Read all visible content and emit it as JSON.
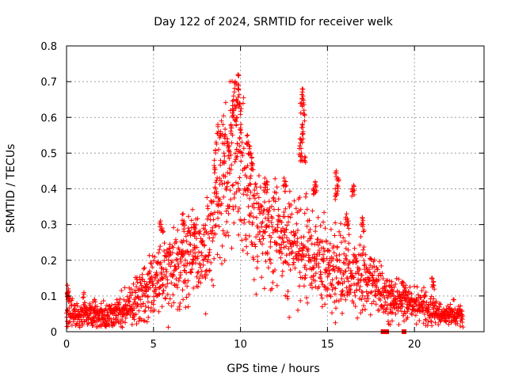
{
  "chart_data": {
    "type": "scatter",
    "title": "Day 122 of 2024, SRMTID for receiver welk",
    "xlabel": "GPS time / hours",
    "ylabel": "SRMTID / TECUs",
    "xlim": [
      0,
      24
    ],
    "ylim": [
      0,
      0.8
    ],
    "xticks": [
      0,
      5,
      10,
      15,
      20
    ],
    "yticks": [
      0,
      0.1,
      0.2,
      0.3,
      0.4,
      0.5,
      0.6,
      0.7,
      0.8
    ],
    "xtick_labels": [
      "0",
      "5",
      "10",
      "15",
      "20"
    ],
    "ytick_labels": [
      "0",
      "0.1",
      "0.2",
      "0.3",
      "0.4",
      "0.5",
      "0.6",
      "0.7",
      "0.8"
    ],
    "grid": true,
    "marker": "plus",
    "color": "#ff0000",
    "series": [
      {
        "name": "SRMTID",
        "profile": [
          [
            0.0,
            0.05,
            0.03
          ],
          [
            1.0,
            0.05,
            0.025
          ],
          [
            2.0,
            0.04,
            0.025
          ],
          [
            3.0,
            0.05,
            0.03
          ],
          [
            3.5,
            0.06,
            0.03
          ],
          [
            4.0,
            0.09,
            0.05
          ],
          [
            4.5,
            0.11,
            0.05
          ],
          [
            5.0,
            0.14,
            0.06
          ],
          [
            5.5,
            0.16,
            0.07
          ],
          [
            6.0,
            0.17,
            0.07
          ],
          [
            6.5,
            0.19,
            0.07
          ],
          [
            7.0,
            0.21,
            0.07
          ],
          [
            7.5,
            0.22,
            0.07
          ],
          [
            8.0,
            0.24,
            0.08
          ],
          [
            8.5,
            0.32,
            0.1
          ],
          [
            9.0,
            0.4,
            0.12
          ],
          [
            9.5,
            0.48,
            0.15
          ],
          [
            10.0,
            0.46,
            0.15
          ],
          [
            10.5,
            0.36,
            0.12
          ],
          [
            11.0,
            0.3,
            0.1
          ],
          [
            11.5,
            0.28,
            0.09
          ],
          [
            12.0,
            0.26,
            0.09
          ],
          [
            12.5,
            0.24,
            0.08
          ],
          [
            13.0,
            0.25,
            0.1
          ],
          [
            13.5,
            0.24,
            0.1
          ],
          [
            14.0,
            0.22,
            0.08
          ],
          [
            14.5,
            0.2,
            0.08
          ],
          [
            15.0,
            0.19,
            0.07
          ],
          [
            15.5,
            0.18,
            0.08
          ],
          [
            16.0,
            0.17,
            0.07
          ],
          [
            16.5,
            0.16,
            0.06
          ],
          [
            17.0,
            0.15,
            0.06
          ],
          [
            17.5,
            0.15,
            0.06
          ],
          [
            18.0,
            0.12,
            0.05
          ],
          [
            18.5,
            0.09,
            0.04
          ],
          [
            19.0,
            0.09,
            0.03
          ],
          [
            19.5,
            0.08,
            0.03
          ],
          [
            20.0,
            0.08,
            0.03
          ],
          [
            20.5,
            0.07,
            0.03
          ],
          [
            21.0,
            0.06,
            0.025
          ],
          [
            21.5,
            0.05,
            0.02
          ],
          [
            22.0,
            0.05,
            0.02
          ],
          [
            22.8,
            0.045,
            0.02
          ]
        ],
        "peaks": [
          [
            9.85,
            0.72
          ],
          [
            9.7,
            0.7
          ],
          [
            9.9,
            0.68
          ],
          [
            9.6,
            0.66
          ],
          [
            9.75,
            0.65
          ],
          [
            9.95,
            0.64
          ],
          [
            9.55,
            0.62
          ],
          [
            9.8,
            0.6
          ],
          [
            9.45,
            0.58
          ],
          [
            10.0,
            0.57
          ],
          [
            8.7,
            0.58
          ],
          [
            8.85,
            0.56
          ],
          [
            9.1,
            0.55
          ],
          [
            9.25,
            0.54
          ],
          [
            10.4,
            0.55
          ],
          [
            10.5,
            0.52
          ],
          [
            8.6,
            0.53
          ],
          [
            9.35,
            0.52
          ],
          [
            10.6,
            0.5
          ],
          [
            9.05,
            0.5
          ],
          [
            8.5,
            0.48
          ],
          [
            10.7,
            0.47
          ],
          [
            13.55,
            0.68
          ],
          [
            13.6,
            0.66
          ],
          [
            13.5,
            0.64
          ],
          [
            13.65,
            0.62
          ],
          [
            13.55,
            0.58
          ],
          [
            13.6,
            0.56
          ],
          [
            13.45,
            0.54
          ],
          [
            13.4,
            0.52
          ],
          [
            13.5,
            0.5
          ],
          [
            13.7,
            0.49
          ],
          [
            15.5,
            0.45
          ],
          [
            15.6,
            0.43
          ],
          [
            15.55,
            0.41
          ],
          [
            15.45,
            0.4
          ],
          [
            14.3,
            0.42
          ],
          [
            14.35,
            0.41
          ],
          [
            14.2,
            0.4
          ],
          [
            16.5,
            0.41
          ],
          [
            16.45,
            0.4
          ],
          [
            12.5,
            0.43
          ],
          [
            12.6,
            0.42
          ],
          [
            11.4,
            0.43
          ],
          [
            11.5,
            0.42
          ],
          [
            16.1,
            0.33
          ],
          [
            16.2,
            0.31
          ],
          [
            17.0,
            0.32
          ],
          [
            17.05,
            0.3
          ],
          [
            6.7,
            0.33
          ],
          [
            6.75,
            0.31
          ],
          [
            7.3,
            0.3
          ],
          [
            7.4,
            0.29
          ],
          [
            5.4,
            0.31
          ],
          [
            5.5,
            0.29
          ],
          [
            18.7,
            0.14
          ],
          [
            19.3,
            0.14
          ],
          [
            19.5,
            0.13
          ],
          [
            21.0,
            0.15
          ],
          [
            21.1,
            0.14
          ],
          [
            1.0,
            0.11
          ],
          [
            1.6,
            0.09
          ],
          [
            0.05,
            0.13
          ],
          [
            0.1,
            0.12
          ],
          [
            0.05,
            0.11
          ]
        ],
        "lows": [
          [
            8.0,
            0.05
          ],
          [
            7.0,
            0.07
          ],
          [
            6.7,
            0.09
          ],
          [
            12.8,
            0.04
          ],
          [
            13.3,
            0.06
          ],
          [
            14.7,
            0.07
          ],
          [
            16.5,
            0.08
          ],
          [
            17.9,
            0.06
          ],
          [
            18.6,
            0.02
          ],
          [
            19.1,
            0.02
          ],
          [
            19.4,
            0.03
          ],
          [
            19.6,
            0.04
          ],
          [
            21.2,
            0.025
          ],
          [
            4.5,
            0.03
          ],
          [
            4.7,
            0.04
          ],
          [
            3.0,
            0.025
          ],
          [
            2.3,
            0.02
          ],
          [
            2.0,
            0.015
          ]
        ],
        "squares": [
          [
            18.2,
            0.0
          ],
          [
            18.4,
            0.0
          ],
          [
            19.4,
            0.0
          ]
        ]
      }
    ]
  }
}
